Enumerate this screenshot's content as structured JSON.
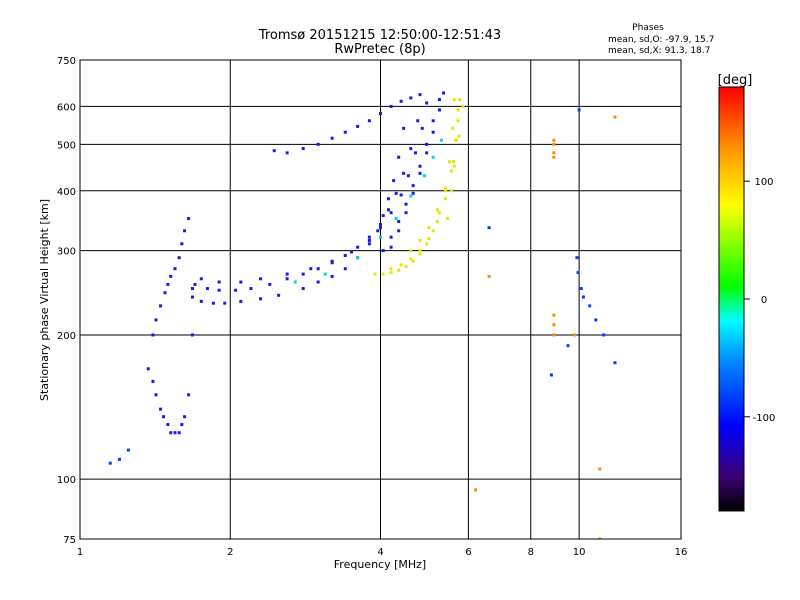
{
  "chart_data": {
    "type": "scatter",
    "title": "Tromsø 20151215 12:50:00-12:51:43",
    "subtitle": "RwPretec (8p)",
    "xlabel": "Frequency [MHz]",
    "ylabel": "Stationary phase Virtual Height [km]",
    "x_scale": "log",
    "y_scale": "log",
    "xlim": [
      1,
      16
    ],
    "ylim": [
      75,
      750
    ],
    "x_ticks": [
      1,
      2,
      4,
      6,
      8,
      10,
      16
    ],
    "y_ticks": [
      75,
      100,
      200,
      300,
      400,
      500,
      600,
      750
    ],
    "x_gridlines": [
      2,
      4,
      6,
      8,
      10
    ],
    "y_gridlines": [
      100,
      200,
      300,
      400,
      500,
      600
    ],
    "grid": true,
    "stats": {
      "heading": "Phases",
      "line1": "mean, sd,O: -97.9, 15.7",
      "line2": "mean, sd,X:  91.3, 18.7"
    },
    "colorbar": {
      "label": "[deg]",
      "range": [
        -180,
        180
      ],
      "ticks": [
        100,
        0,
        -100
      ],
      "colors": [
        "#000000",
        "#3a0070",
        "#0000ff",
        "#0090ff",
        "#00ffff",
        "#00ff00",
        "#ffff00",
        "#ff9900",
        "#ff0000"
      ]
    },
    "series": [
      {
        "color": "#1a1ae0",
        "phase": -100,
        "segments": [
          {
            "x": [
              1.37,
              1.4,
              1.42,
              1.45,
              1.47,
              1.5,
              1.52,
              1.55,
              1.58,
              1.6,
              1.62,
              1.65,
              1.68
            ],
            "y": [
              170,
              160,
              150,
              140,
              135,
              130,
              125,
              125,
              125,
              130,
              135,
              150,
              200
            ]
          },
          {
            "x": [
              1.4,
              1.42,
              1.45,
              1.48,
              1.5,
              1.52,
              1.55,
              1.58,
              1.6,
              1.62,
              1.65,
              1.68
            ],
            "y": [
              200,
              215,
              230,
              245,
              255,
              265,
              275,
              290,
              310,
              330,
              350,
              250
            ]
          },
          {
            "x": [
              1.68,
              1.75,
              1.85,
              1.95,
              2.1,
              2.3,
              2.5,
              2.8,
              3.0,
              3.2,
              3.4,
              3.6,
              3.8,
              3.95,
              4.05,
              4.15,
              4.25,
              4.35,
              4.45
            ],
            "y": [
              240,
              235,
              233,
              233,
              235,
              238,
              242,
              250,
              258,
              265,
              275,
              290,
              310,
              330,
              355,
              385,
              420,
              470,
              540
            ]
          },
          {
            "x": [
              1.7,
              1.8,
              1.9,
              2.05,
              2.2,
              2.4,
              2.6,
              2.8,
              3.0,
              3.2,
              3.4,
              3.6,
              3.8,
              4.0,
              4.15,
              4.3,
              4.45,
              4.6,
              4.75
            ],
            "y": [
              255,
              250,
              248,
              248,
              250,
              255,
              262,
              268,
              275,
              283,
              293,
              305,
              320,
              340,
              365,
              395,
              435,
              490,
              560
            ]
          },
          {
            "x": [
              1.75,
              1.9,
              2.1,
              2.3,
              2.6,
              2.9,
              3.2,
              3.5,
              3.8,
              4.0,
              4.2,
              4.4,
              4.55,
              4.7,
              4.85,
              4.95
            ],
            "y": [
              262,
              258,
              258,
              262,
              268,
              275,
              285,
              298,
              315,
              335,
              360,
              392,
              430,
              480,
              540,
              610
            ]
          },
          {
            "x": [
              4.05,
              4.2,
              4.35,
              4.5,
              4.65,
              4.8,
              4.95,
              5.1,
              5.25
            ],
            "y": [
              300,
              320,
              345,
              375,
              410,
              450,
              500,
              560,
              620
            ]
          },
          {
            "x": [
              4.2,
              4.35,
              4.5,
              4.65,
              4.8,
              4.95,
              5.1,
              5.25,
              5.35
            ],
            "y": [
              305,
              330,
              360,
              395,
              435,
              480,
              530,
              590,
              640
            ]
          },
          {
            "x": [
              2.45,
              2.6,
              2.8,
              3.0,
              3.2,
              3.4,
              3.6,
              3.8,
              4.0,
              4.2,
              4.4,
              4.6,
              4.8
            ],
            "y": [
              485,
              480,
              490,
              500,
              515,
              530,
              545,
              560,
              580,
              600,
              615,
              625,
              635
            ]
          }
        ]
      },
      {
        "color": "#e6e600",
        "phase": 100,
        "segments": [
          {
            "x": [
              3.9,
              4.05,
              4.2,
              4.35,
              4.5,
              4.65,
              4.8,
              4.95,
              5.1,
              5.25,
              5.4,
              5.5,
              5.58,
              5.62
            ],
            "y": [
              268,
              268,
              270,
              273,
              278,
              285,
              295,
              310,
              330,
              360,
              400,
              460,
              540,
              620
            ]
          },
          {
            "x": [
              4.2,
              4.4,
              4.6,
              4.8,
              5.0,
              5.2,
              5.4,
              5.55,
              5.65,
              5.72
            ],
            "y": [
              275,
              280,
              288,
              300,
              318,
              345,
              385,
              440,
              510,
              590
            ]
          },
          {
            "x": [
              4.6,
              4.8,
              5.0,
              5.2,
              5.4,
              5.6,
              5.75,
              5.85
            ],
            "y": [
              300,
              315,
              335,
              365,
              405,
              460,
              520,
              600
            ]
          },
          {
            "x": [
              5.45,
              5.55,
              5.62,
              5.68,
              5.72,
              5.76
            ],
            "y": [
              350,
              400,
              450,
              510,
              560,
              620
            ]
          }
        ]
      },
      {
        "color": "#00d8e0",
        "phase": 40,
        "segments": [
          {
            "x": [
              2.7,
              3.1,
              3.6,
              4.0,
              4.3,
              4.6,
              4.9,
              5.1,
              5.3
            ],
            "y": [
              258,
              268,
              290,
              320,
              350,
              390,
              430,
              470,
              510
            ]
          }
        ]
      },
      {
        "color": "#ff8c00",
        "phase": 150,
        "segments": [
          {
            "x": [
              8.9,
              8.9,
              8.9,
              8.9
            ],
            "y": [
              470,
              480,
              500,
              510
            ]
          },
          {
            "x": [
              8.9,
              8.9,
              8.9
            ],
            "y": [
              200,
              210,
              220
            ]
          },
          {
            "x": [
              11.8,
              11.0,
              6.2,
              6.6,
              9.8,
              11.0
            ],
            "y": [
              570,
              105,
              95,
              265,
              200,
              75
            ]
          }
        ]
      },
      {
        "color": "#0040ff",
        "phase": -90,
        "segments": [
          {
            "x": [
              9.9,
              10.0,
              9.95,
              10.1,
              10.2,
              10.5,
              10.8,
              11.2,
              11.8
            ],
            "y": [
              290,
              590,
              270,
              250,
              240,
              230,
              215,
              200,
              175
            ]
          },
          {
            "x": [
              1.15,
              1.2,
              1.25
            ],
            "y": [
              108,
              110,
              115
            ]
          },
          {
            "x": [
              8.8,
              6.6,
              9.5
            ],
            "y": [
              165,
              335,
              190
            ]
          }
        ]
      }
    ]
  }
}
